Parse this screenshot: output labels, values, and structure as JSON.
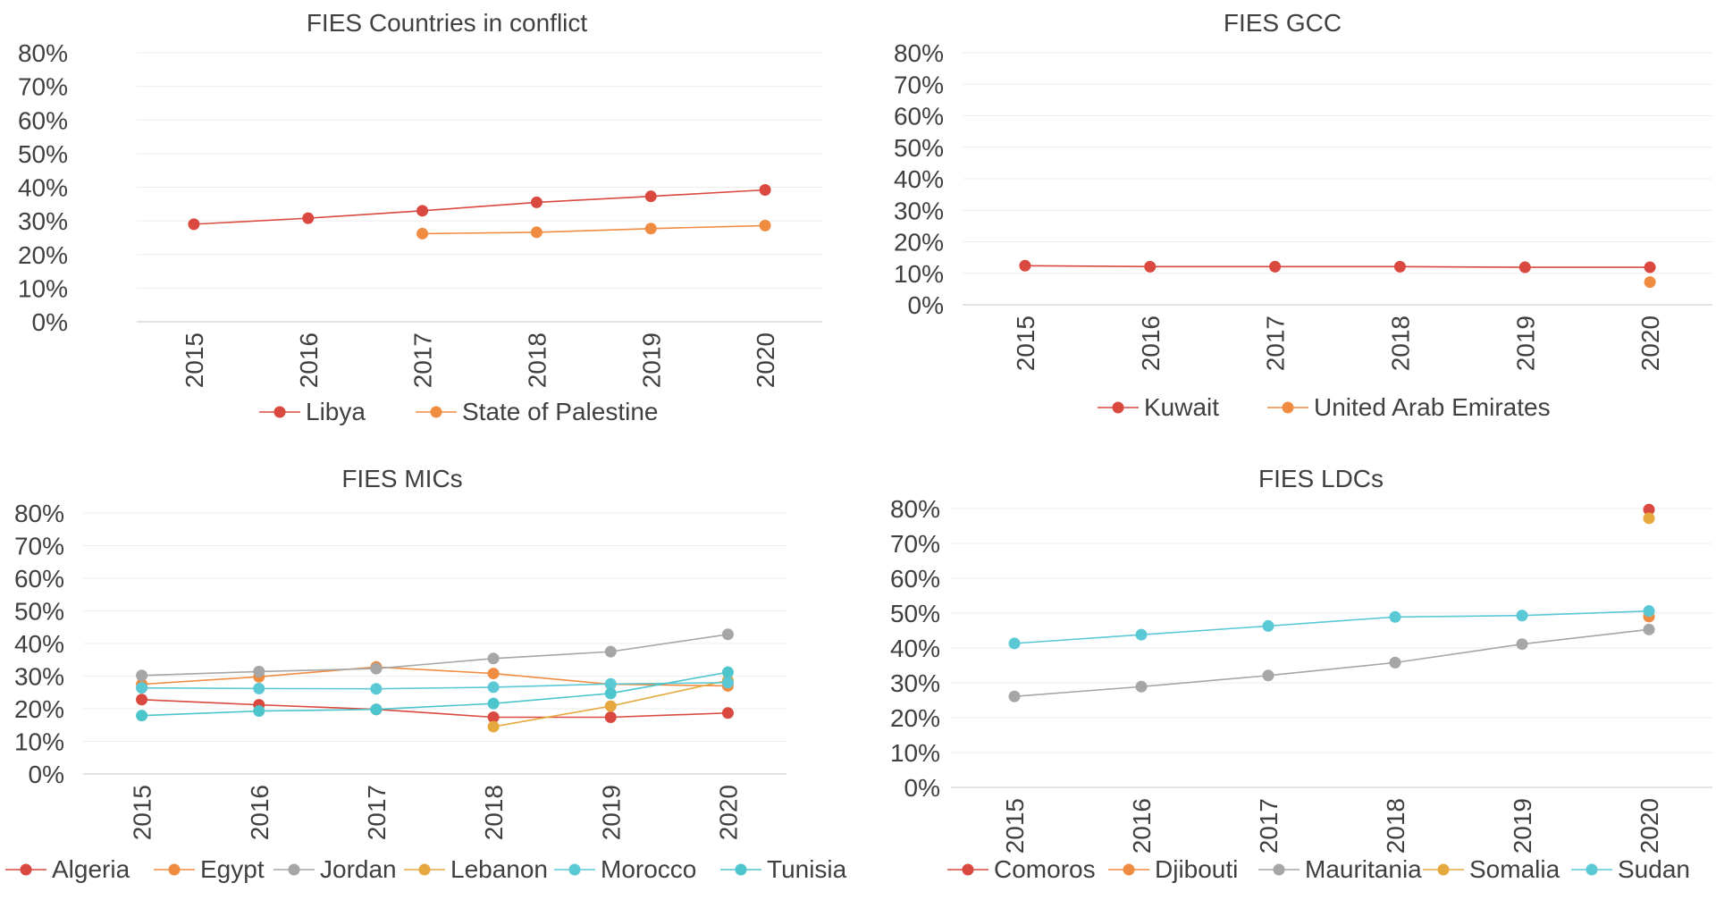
{
  "chart_data": [
    {
      "type": "line",
      "title": "FIES Countries in conflict",
      "categories": [
        "2015",
        "2016",
        "2017",
        "2018",
        "2019",
        "2020"
      ],
      "ylim": [
        0,
        80
      ],
      "yticks": [
        "0%",
        "10%",
        "20%",
        "30%",
        "40%",
        "50%",
        "60%",
        "70%",
        "80%"
      ],
      "grid": true,
      "legend_position": "bottom",
      "series": [
        {
          "name": "Libya",
          "color": "#d9493f",
          "values": [
            29,
            30.8,
            33,
            35.5,
            37.3,
            39.2
          ]
        },
        {
          "name": "State of Palestine",
          "color": "#f08c42",
          "values": [
            null,
            null,
            26.2,
            26.6,
            27.7,
            28.6
          ]
        }
      ]
    },
    {
      "type": "line",
      "title": "FIES GCC",
      "categories": [
        "2015",
        "2016",
        "2017",
        "2018",
        "2019",
        "2020"
      ],
      "ylim": [
        0,
        80
      ],
      "yticks": [
        "0%",
        "10%",
        "20%",
        "30%",
        "40%",
        "50%",
        "60%",
        "70%",
        "80%"
      ],
      "grid": true,
      "legend_position": "bottom",
      "series": [
        {
          "name": "Kuwait",
          "color": "#d9493f",
          "values": [
            12.4,
            12.1,
            12.1,
            12.1,
            11.9,
            11.9
          ]
        },
        {
          "name": "United Arab Emirates",
          "color": "#f08c42",
          "values": [
            null,
            null,
            null,
            null,
            null,
            7.2
          ]
        }
      ]
    },
    {
      "type": "line",
      "title": "FIES MICs",
      "categories": [
        "2015",
        "2016",
        "2017",
        "2018",
        "2019",
        "2020"
      ],
      "ylim": [
        0,
        80
      ],
      "yticks": [
        "0%",
        "10%",
        "20%",
        "30%",
        "40%",
        "50%",
        "60%",
        "70%",
        "80%"
      ],
      "grid": true,
      "legend_position": "bottom",
      "series": [
        {
          "name": "Algeria",
          "color": "#d9493f",
          "values": [
            22.8,
            21.2,
            19.8,
            17.4,
            17.4,
            18.7
          ]
        },
        {
          "name": "Egypt",
          "color": "#f08c42",
          "values": [
            27.5,
            29.8,
            32.8,
            30.8,
            27.5,
            27
          ]
        },
        {
          "name": "Jordan",
          "color": "#a6a6a6",
          "values": [
            30.2,
            31.4,
            32.3,
            35.4,
            37.5,
            42.8
          ]
        },
        {
          "name": "Lebanon",
          "color": "#e6a940",
          "values": [
            null,
            null,
            null,
            14.5,
            20.8,
            28.7
          ]
        },
        {
          "name": "Morocco",
          "color": "#5bc8d6",
          "values": [
            26.4,
            26.2,
            26.1,
            26.6,
            27.6,
            28
          ]
        },
        {
          "name": "Tunisia",
          "color": "#4cc5cc",
          "values": [
            17.9,
            19.3,
            19.8,
            21.6,
            24.7,
            31.2
          ]
        }
      ]
    },
    {
      "type": "line",
      "title": "FIES LDCs",
      "categories": [
        "2015",
        "2016",
        "2017",
        "2018",
        "2019",
        "2020"
      ],
      "ylim": [
        0,
        80
      ],
      "yticks": [
        "0%",
        "10%",
        "20%",
        "30%",
        "40%",
        "50%",
        "60%",
        "70%",
        "80%"
      ],
      "grid": true,
      "legend_position": "bottom",
      "series": [
        {
          "name": "Comoros",
          "color": "#d9493f",
          "values": [
            null,
            null,
            null,
            null,
            null,
            79.7
          ]
        },
        {
          "name": "Djibouti",
          "color": "#f08c42",
          "values": [
            null,
            null,
            null,
            null,
            null,
            49
          ]
        },
        {
          "name": "Mauritania",
          "color": "#a6a6a6",
          "values": [
            26.1,
            28.9,
            32.1,
            35.8,
            41.1,
            45.3
          ]
        },
        {
          "name": "Somalia",
          "color": "#e6a940",
          "values": [
            null,
            null,
            null,
            null,
            null,
            77.2
          ]
        },
        {
          "name": "Sudan",
          "color": "#5bc8d6",
          "values": [
            41.3,
            43.8,
            46.3,
            48.9,
            49.3,
            50.6
          ]
        }
      ]
    }
  ]
}
